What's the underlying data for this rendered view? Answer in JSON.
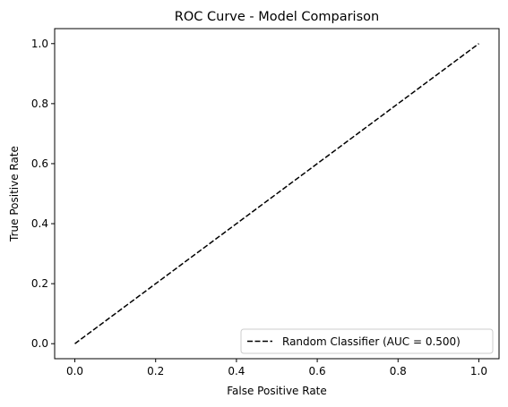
{
  "chart_data": {
    "type": "line",
    "title": "ROC Curve - Model Comparison",
    "xlabel": "False Positive Rate",
    "ylabel": "True Positive Rate",
    "xlim": [
      -0.05,
      1.05
    ],
    "ylim": [
      -0.05,
      1.05
    ],
    "xticks": [
      0.0,
      0.2,
      0.4,
      0.6,
      0.8,
      1.0
    ],
    "yticks": [
      0.0,
      0.2,
      0.4,
      0.6,
      0.8,
      1.0
    ],
    "xtick_labels": [
      "0.0",
      "0.2",
      "0.4",
      "0.6",
      "0.8",
      "1.0"
    ],
    "ytick_labels": [
      "0.0",
      "0.2",
      "0.4",
      "0.6",
      "0.8",
      "1.0"
    ],
    "grid": false,
    "legend_position": "lower right",
    "series": [
      {
        "name": "Random Classifier (AUC = 0.500)",
        "x": [
          0.0,
          1.0
        ],
        "y": [
          0.0,
          1.0
        ],
        "color": "#000000",
        "linestyle": "dashed"
      }
    ]
  }
}
